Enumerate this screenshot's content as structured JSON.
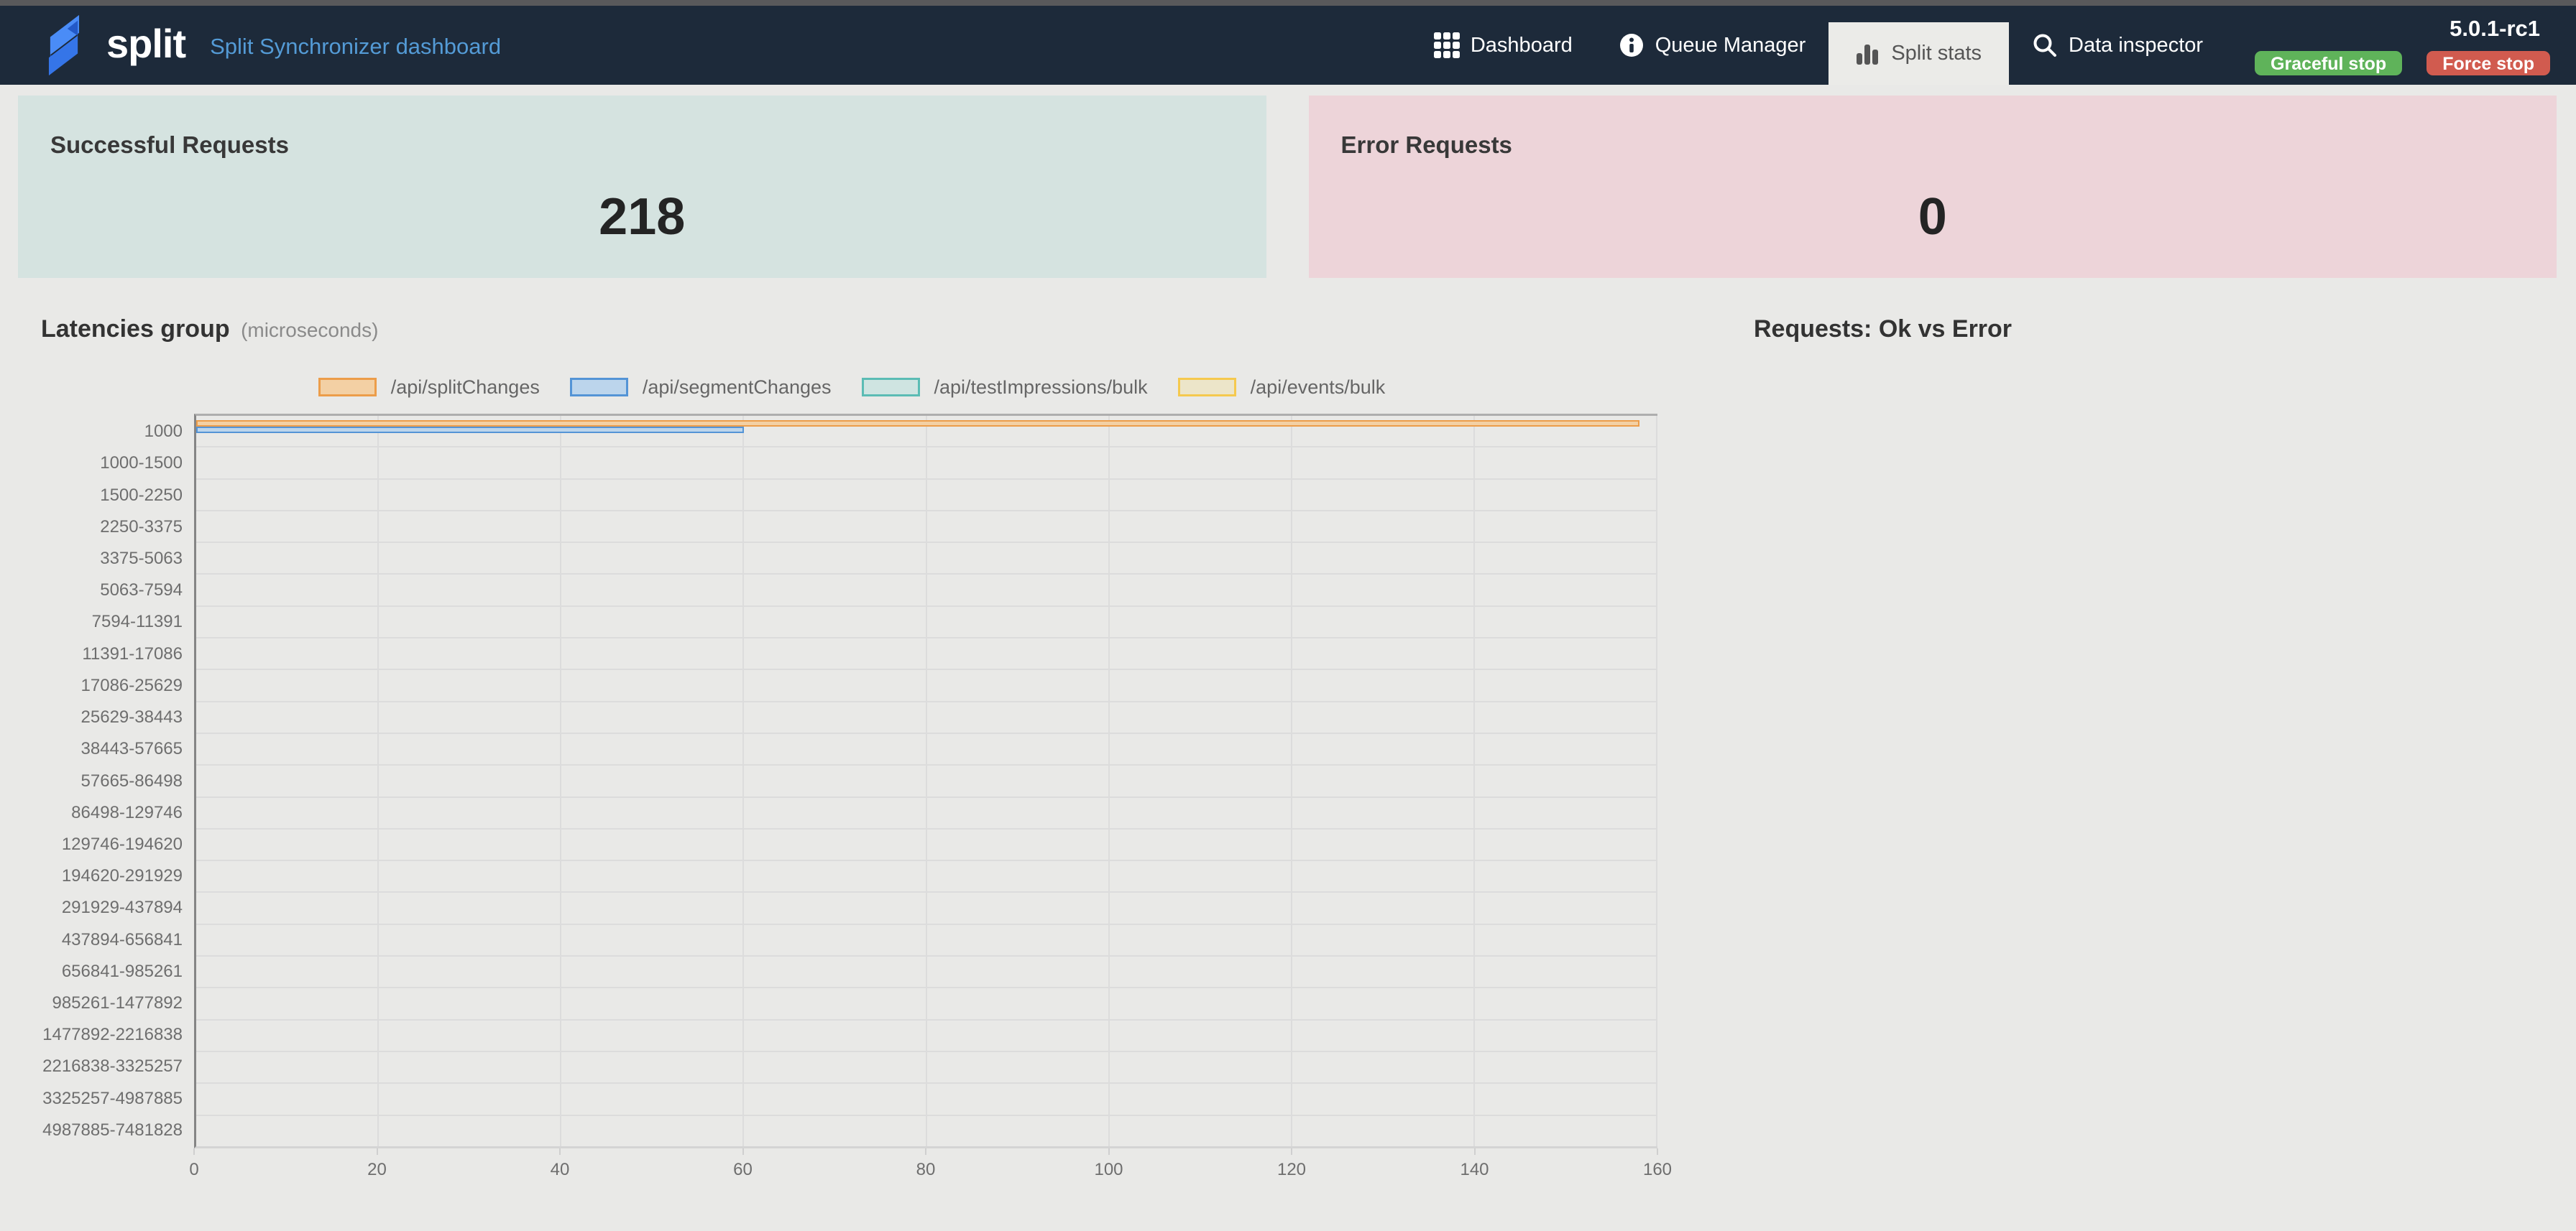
{
  "navbar": {
    "brand": "split",
    "title": "Split Synchronizer dashboard",
    "items": [
      {
        "label": "Dashboard",
        "icon": "grid-icon",
        "active": false
      },
      {
        "label": "Queue Manager",
        "icon": "info-icon",
        "active": false
      },
      {
        "label": "Split stats",
        "icon": "bar-chart-icon",
        "active": true
      },
      {
        "label": "Data inspector",
        "icon": "search-icon",
        "active": false
      }
    ],
    "version": "5.0.1-rc1",
    "graceful_stop_label": "Graceful stop",
    "force_stop_label": "Force stop",
    "colors": {
      "navbar_bg": "#1d2a3a",
      "title_blue": "#549bd6",
      "green": "#5fb35a",
      "red": "#d15b4f"
    }
  },
  "cards": {
    "success": {
      "title": "Successful Requests",
      "value": "218",
      "bg": "#d5e3e0"
    },
    "error": {
      "title": "Error Requests",
      "value": "0",
      "bg": "#edd4d9"
    }
  },
  "latencies": {
    "title": "Latencies group",
    "subtitle": "(microseconds)"
  },
  "requests_title": "Requests: Ok vs Error",
  "chart_data": {
    "type": "bar",
    "orientation": "horizontal",
    "title": "Latencies group (microseconds)",
    "categories": [
      "1000",
      "1000-1500",
      "1500-2250",
      "2250-3375",
      "3375-5063",
      "5063-7594",
      "7594-11391",
      "11391-17086",
      "17086-25629",
      "25629-38443",
      "38443-57665",
      "57665-86498",
      "86498-129746",
      "129746-194620",
      "194620-291929",
      "291929-437894",
      "437894-656841",
      "656841-985261",
      "985261-1477892",
      "1477892-2216838",
      "2216838-3325257",
      "3325257-4987885",
      "4987885-7481828"
    ],
    "series": [
      {
        "name": "/api/splitChanges",
        "fill": "#f3d0a4",
        "border": "#ec9d4a",
        "values": [
          158,
          0,
          0,
          0,
          0,
          0,
          0,
          0,
          0,
          0,
          0,
          0,
          0,
          0,
          0,
          0,
          0,
          0,
          0,
          0,
          0,
          0,
          0
        ]
      },
      {
        "name": "/api/segmentChanges",
        "fill": "#bcd5ec",
        "border": "#5494d6",
        "values": [
          60,
          0,
          0,
          0,
          0,
          0,
          0,
          0,
          0,
          0,
          0,
          0,
          0,
          0,
          0,
          0,
          0,
          0,
          0,
          0,
          0,
          0,
          0
        ]
      },
      {
        "name": "/api/testImpressions/bulk",
        "fill": "#cfe4e1",
        "border": "#5bbcb4",
        "values": [
          0,
          0,
          0,
          0,
          0,
          0,
          0,
          0,
          0,
          0,
          0,
          0,
          0,
          0,
          0,
          0,
          0,
          0,
          0,
          0,
          0,
          0,
          0
        ]
      },
      {
        "name": "/api/events/bulk",
        "fill": "#ece5c9",
        "border": "#f5c94e",
        "values": [
          0,
          0,
          0,
          0,
          0,
          0,
          0,
          0,
          0,
          0,
          0,
          0,
          0,
          0,
          0,
          0,
          0,
          0,
          0,
          0,
          0,
          0,
          0
        ]
      }
    ],
    "xlim": [
      0,
      160
    ],
    "xticks": [
      0,
      20,
      40,
      60,
      80,
      100,
      120,
      140,
      160
    ],
    "legend_position": "top",
    "grid": true
  }
}
